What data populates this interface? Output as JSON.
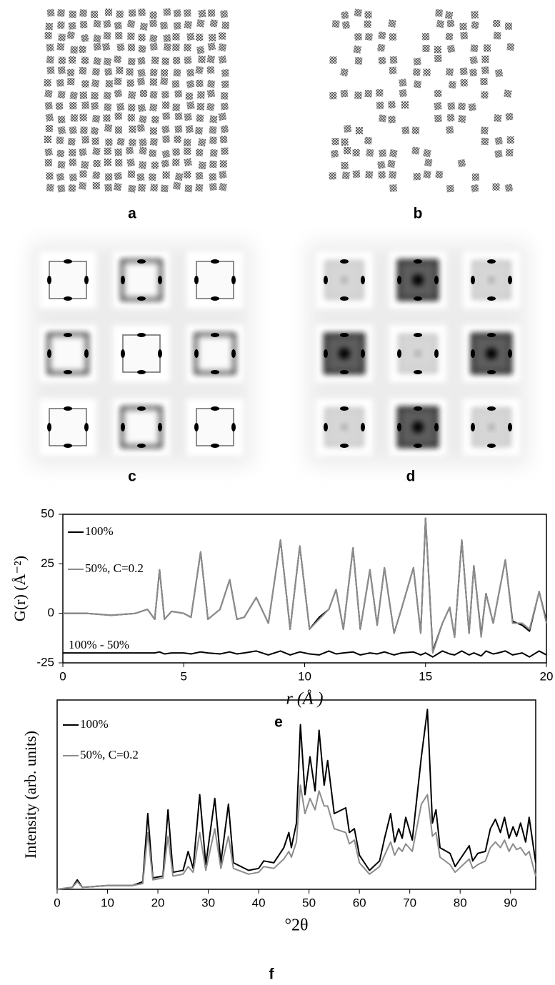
{
  "panels": {
    "a": "a",
    "b": "b",
    "c": "c",
    "d": "d",
    "e": "e",
    "f": "f"
  },
  "chart_data": [
    {
      "type": "line",
      "xlabel": "r (Å )",
      "ylabel": "G(r) (Å⁻²)",
      "xlim": [
        0,
        20
      ],
      "xticks": [
        0,
        5,
        10,
        15,
        20
      ],
      "ylim": [
        -25,
        50
      ],
      "yticks": [
        -25,
        0,
        25,
        50
      ],
      "x": [
        0,
        1,
        2,
        3,
        3.5,
        3.8,
        4.0,
        4.2,
        4.5,
        5,
        5.3,
        5.7,
        6.0,
        6.5,
        6.9,
        7.2,
        7.5,
        8.0,
        8.5,
        9.0,
        9.4,
        9.8,
        10.2,
        10.6,
        11.0,
        11.3,
        11.6,
        12.0,
        12.3,
        12.7,
        13.0,
        13.3,
        13.7,
        14.0,
        14.5,
        14.8,
        15.0,
        15.3,
        15.7,
        16.0,
        16.2,
        16.5,
        16.8,
        17.0,
        17.3,
        17.5,
        17.8,
        18.0,
        18.3,
        18.6,
        19.0,
        19.3,
        19.7,
        20.0
      ],
      "series": [
        {
          "name": "100%",
          "color": "#000000",
          "values": [
            0,
            0,
            -1,
            0,
            2,
            -3,
            22,
            -3,
            1,
            0,
            -2,
            31,
            -3,
            2,
            17,
            -3,
            -2,
            8,
            -5,
            37,
            -8,
            34,
            -8,
            -2,
            2,
            12,
            -8,
            33,
            -8,
            22,
            -6,
            23,
            -10,
            2,
            23,
            -10,
            48,
            -19,
            -5,
            3,
            -12,
            37,
            -10,
            24,
            -11,
            10,
            -5,
            8,
            27,
            -4,
            -6,
            -9,
            11,
            -4
          ]
        },
        {
          "name": "50%, C=0.2",
          "color": "#8c8c8c",
          "values": [
            0,
            0,
            -1,
            0,
            2,
            -3,
            22,
            -3,
            1,
            0,
            -2,
            31,
            -3,
            2,
            17,
            -3,
            -2,
            8,
            -5,
            37,
            -8,
            34,
            -8,
            -3,
            2,
            12,
            -8,
            33,
            -8,
            22,
            -6,
            23,
            -10,
            2,
            23,
            -10,
            48,
            -20,
            -5,
            3,
            -12,
            37,
            -10,
            24,
            -12,
            10,
            -5,
            8,
            27,
            -5,
            -5,
            -8,
            11,
            -5
          ]
        },
        {
          "name": "100% - 50%",
          "color": "#000000",
          "values": [
            -20,
            -20,
            -20,
            -20,
            -20,
            -20,
            -19.5,
            -20.5,
            -20,
            -20,
            -20.5,
            -19.5,
            -20,
            -20.5,
            -19.5,
            -20.5,
            -20,
            -19,
            -21,
            -19,
            -21,
            -19.5,
            -20.5,
            -21,
            -19,
            -20.5,
            -20,
            -19.5,
            -21,
            -20,
            -20.5,
            -19.5,
            -21,
            -20,
            -19.5,
            -21,
            -20,
            -22,
            -19,
            -20.5,
            -21,
            -19,
            -21,
            -20,
            -21.5,
            -19,
            -20.5,
            -20,
            -19,
            -21,
            -20,
            -22,
            -19,
            -21
          ]
        }
      ]
    },
    {
      "type": "line",
      "xlabel": "°2θ",
      "ylabel": "Intensity (arb. units)",
      "xlim": [
        0,
        95
      ],
      "xticks": [
        0,
        10,
        20,
        30,
        40,
        50,
        60,
        70,
        80,
        90
      ],
      "ylim": [
        0,
        100
      ],
      "x": [
        0,
        3,
        4,
        5,
        10,
        15,
        17,
        18,
        19,
        21,
        22,
        23,
        25,
        26,
        27,
        28.3,
        29.5,
        31.3,
        32.5,
        34,
        35,
        38,
        40,
        41,
        43,
        45,
        46,
        46.5,
        47.5,
        48.3,
        49.2,
        50.2,
        51.2,
        52,
        53,
        53.7,
        55,
        57.3,
        58,
        59,
        60,
        62,
        64,
        65,
        66.2,
        67,
        67.8,
        68.5,
        69.2,
        70.5,
        72.3,
        73.5,
        74.5,
        75.2,
        76,
        78,
        79,
        81.8,
        82.5,
        83.5,
        85,
        86,
        87,
        88,
        88.8,
        89.7,
        90.5,
        91.2,
        92,
        93,
        93.7,
        95
      ],
      "series": [
        {
          "name": "100%",
          "color": "#000000",
          "values": [
            0,
            1,
            5,
            1,
            2,
            2,
            4,
            40,
            6,
            7,
            42,
            9,
            10,
            20,
            11,
            50,
            13,
            48,
            14,
            45,
            14,
            10,
            11,
            15,
            14,
            22,
            30,
            22,
            35,
            87,
            50,
            70,
            52,
            84,
            55,
            68,
            40,
            43,
            30,
            32,
            18,
            10,
            15,
            27,
            40,
            25,
            32,
            27,
            38,
            26,
            70,
            95,
            35,
            42,
            22,
            19,
            12,
            23,
            15,
            19,
            20,
            32,
            37,
            30,
            38,
            27,
            33,
            28,
            35,
            25,
            38,
            14
          ]
        },
        {
          "name": "50%, C=0.2",
          "color": "#8c8c8c",
          "values": [
            0,
            1,
            4,
            1,
            2,
            2,
            3,
            30,
            5,
            6,
            28,
            7,
            8,
            12,
            9,
            30,
            10,
            32,
            11,
            28,
            11,
            8,
            9,
            12,
            11,
            16,
            20,
            17,
            25,
            55,
            40,
            48,
            42,
            52,
            44,
            44,
            32,
            30,
            24,
            26,
            14,
            8,
            12,
            18,
            25,
            18,
            22,
            20,
            24,
            20,
            45,
            50,
            28,
            30,
            17,
            13,
            9,
            16,
            11,
            13,
            15,
            22,
            25,
            22,
            26,
            20,
            24,
            21,
            22,
            18,
            20,
            7
          ]
        }
      ]
    }
  ]
}
